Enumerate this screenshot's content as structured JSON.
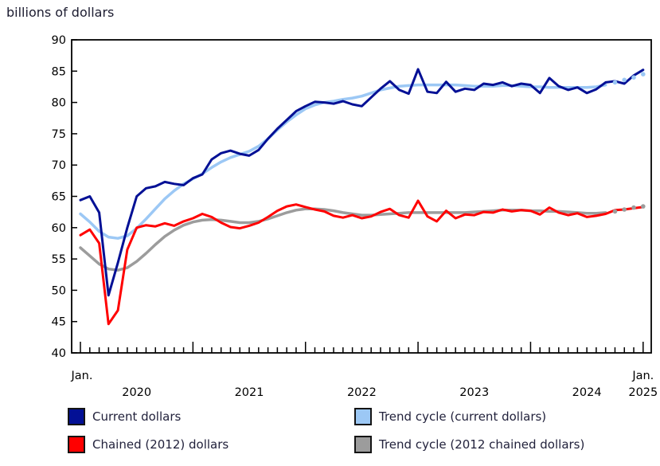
{
  "chart_data": {
    "type": "line",
    "title": "billions of dollars",
    "x_start": "Jan 2020",
    "x_end": "Jan 2025",
    "frequency": "monthly",
    "n_points": 61,
    "grid": false,
    "legend_position": "bottom-two-columns",
    "y_axis": {
      "min": 40,
      "max": 90,
      "step": 5,
      "ticks": [
        90,
        85,
        80,
        75,
        70,
        65,
        60,
        55,
        50,
        45,
        40
      ]
    },
    "x_axis": {
      "start_month_label": "Jan.",
      "end_month_label": "Jan.",
      "end_year_label": "2025",
      "year_labels": [
        "2020",
        "2021",
        "2022",
        "2023",
        "2024"
      ],
      "minor_ticks": "monthly",
      "major_ticks": "january-of-each-year"
    },
    "note": "trend cycle series end with dotted points for the most recent months",
    "series": [
      {
        "id": "current_dollars",
        "label": "Current dollars",
        "color": "#031095",
        "style": "solid",
        "line_width": 3,
        "values": [
          64.4,
          65.0,
          62.4,
          49.2,
          54.4,
          60.0,
          65.0,
          66.3,
          66.6,
          67.3,
          67.0,
          66.8,
          67.9,
          68.5,
          70.9,
          71.9,
          72.3,
          71.8,
          71.5,
          72.4,
          74.2,
          75.8,
          77.2,
          78.6,
          79.4,
          80.1,
          80.0,
          79.8,
          80.2,
          79.7,
          79.4,
          80.8,
          82.2,
          83.4,
          82.0,
          81.4,
          85.3,
          81.7,
          81.5,
          83.3,
          81.7,
          82.2,
          82.0,
          83.0,
          82.8,
          83.2,
          82.6,
          83.0,
          82.8,
          81.5,
          83.9,
          82.6,
          82.0,
          82.4,
          81.5,
          82.1,
          83.2,
          83.4,
          83.0,
          84.3,
          85.2
        ]
      },
      {
        "id": "trend_cycle_current",
        "label": "Trend cycle (current dollars)",
        "color": "#9CC8F5",
        "style": "solid-with-dotted-tail",
        "dotted_tail_points": 4,
        "line_width": 3.5,
        "values": [
          62.2,
          60.9,
          59.4,
          58.5,
          58.3,
          58.7,
          59.9,
          61.4,
          63.0,
          64.6,
          65.9,
          67.0,
          67.8,
          68.6,
          69.6,
          70.5,
          71.2,
          71.7,
          72.2,
          73.0,
          74.2,
          75.6,
          76.9,
          78.0,
          79.0,
          79.6,
          80.0,
          80.2,
          80.5,
          80.7,
          81.0,
          81.5,
          82.0,
          82.3,
          82.6,
          82.7,
          82.8,
          82.8,
          82.8,
          82.8,
          82.8,
          82.7,
          82.6,
          82.6,
          82.6,
          82.7,
          82.7,
          82.6,
          82.5,
          82.5,
          82.4,
          82.4,
          82.4,
          82.4,
          82.4,
          82.5,
          82.8,
          83.2,
          83.6,
          84.0,
          84.5
        ]
      },
      {
        "id": "chained_2012_dollars",
        "label": "Chained (2012) dollars",
        "color": "#FF0000",
        "style": "solid",
        "line_width": 3,
        "values": [
          58.8,
          59.7,
          57.5,
          44.6,
          46.8,
          56.5,
          60.0,
          60.4,
          60.2,
          60.7,
          60.3,
          61.0,
          61.5,
          62.2,
          61.7,
          60.8,
          60.1,
          59.9,
          60.3,
          60.8,
          61.7,
          62.7,
          63.4,
          63.7,
          63.3,
          62.9,
          62.6,
          61.9,
          61.6,
          62.0,
          61.5,
          61.8,
          62.5,
          63.0,
          62.0,
          61.6,
          64.3,
          61.8,
          61.0,
          62.7,
          61.5,
          62.1,
          62.0,
          62.5,
          62.4,
          62.9,
          62.6,
          62.8,
          62.7,
          62.1,
          63.2,
          62.4,
          62.0,
          62.3,
          61.7,
          61.9,
          62.2,
          62.8,
          62.9,
          63.1,
          63.3
        ]
      },
      {
        "id": "trend_cycle_chained",
        "label": "Trend cycle (2012 chained dollars)",
        "color": "#9C9C9C",
        "style": "solid-with-dotted-tail",
        "dotted_tail_points": 4,
        "line_width": 3.5,
        "values": [
          56.8,
          55.5,
          54.2,
          53.4,
          53.2,
          53.6,
          54.6,
          55.9,
          57.3,
          58.6,
          59.6,
          60.4,
          60.9,
          61.2,
          61.3,
          61.2,
          61.0,
          60.8,
          60.8,
          61.0,
          61.4,
          61.9,
          62.4,
          62.8,
          63.0,
          63.0,
          62.9,
          62.7,
          62.4,
          62.2,
          62.0,
          62.0,
          62.1,
          62.2,
          62.3,
          62.4,
          62.4,
          62.4,
          62.4,
          62.4,
          62.4,
          62.4,
          62.5,
          62.6,
          62.7,
          62.8,
          62.8,
          62.8,
          62.7,
          62.7,
          62.6,
          62.6,
          62.5,
          62.4,
          62.3,
          62.3,
          62.4,
          62.6,
          62.9,
          63.2,
          63.4
        ]
      }
    ]
  },
  "legend": {
    "rows": [
      [
        "Current dollars",
        "Trend cycle (current dollars)"
      ],
      [
        "Chained (2012) dollars",
        "Trend cycle (2012 chained dollars)"
      ]
    ]
  }
}
